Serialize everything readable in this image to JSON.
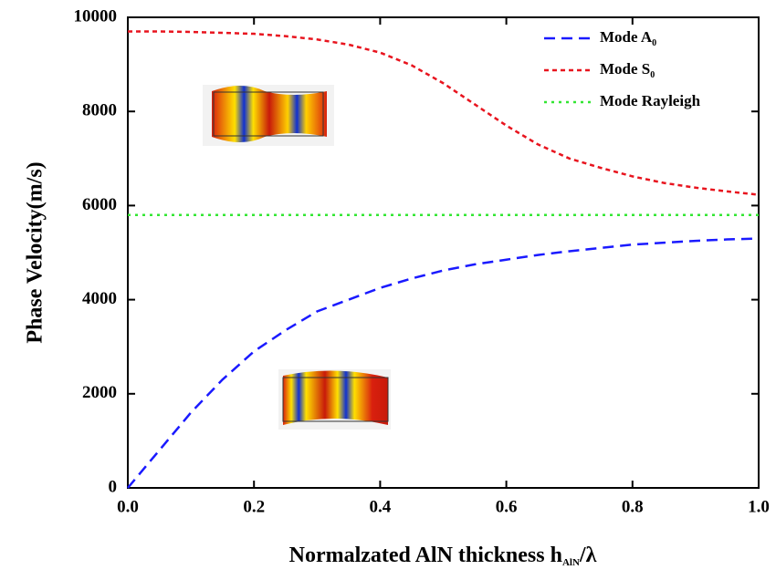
{
  "chart_data": {
    "type": "line",
    "xlabel": "Normalzated AlN thickness h",
    "xlabel_sub": "AlN",
    "xlabel_tail": "/λ",
    "ylabel": "Phase Velocity(m/s)",
    "x": [
      0,
      0.05,
      0.1,
      0.15,
      0.2,
      0.25,
      0.3,
      0.35,
      0.4,
      0.45,
      0.5,
      0.55,
      0.6,
      0.65,
      0.7,
      0.75,
      0.8,
      0.85,
      0.9,
      0.95,
      1.0
    ],
    "series": [
      {
        "name": "Mode  A",
        "name_sub": "0",
        "color": "#1a1aff",
        "dash": "dashed",
        "values": [
          0,
          800,
          1600,
          2300,
          2900,
          3350,
          3750,
          4000,
          4250,
          4450,
          4620,
          4750,
          4850,
          4950,
          5030,
          5100,
          5170,
          5210,
          5250,
          5280,
          5300
        ]
      },
      {
        "name": "Mode  S",
        "name_sub": "0",
        "color": "#e8141e",
        "dash": "short-dash",
        "values": [
          9700,
          9700,
          9690,
          9670,
          9650,
          9600,
          9530,
          9420,
          9250,
          8980,
          8600,
          8150,
          7700,
          7300,
          7000,
          6800,
          6620,
          6480,
          6380,
          6300,
          6230
        ]
      },
      {
        "name": "Mode  Rayleigh",
        "color": "#33e633",
        "dash": "dotted",
        "values": [
          5800,
          5800,
          5800,
          5800,
          5800,
          5800,
          5800,
          5800,
          5800,
          5800,
          5800,
          5800,
          5800,
          5800,
          5800,
          5800,
          5800,
          5800,
          5800,
          5800,
          5800
        ]
      }
    ],
    "xlim": [
      0,
      1.0
    ],
    "xticks": [
      {
        "value": 0,
        "label": "0.0"
      },
      0.2,
      0.4,
      0.6,
      0.8,
      {
        "value": 1.0,
        "label": "1.0"
      }
    ],
    "ylim": [
      0,
      10000
    ],
    "yticks": [
      0,
      2000,
      4000,
      6000,
      8000,
      10000
    ],
    "legend": "upper-right",
    "grid": false
  }
}
